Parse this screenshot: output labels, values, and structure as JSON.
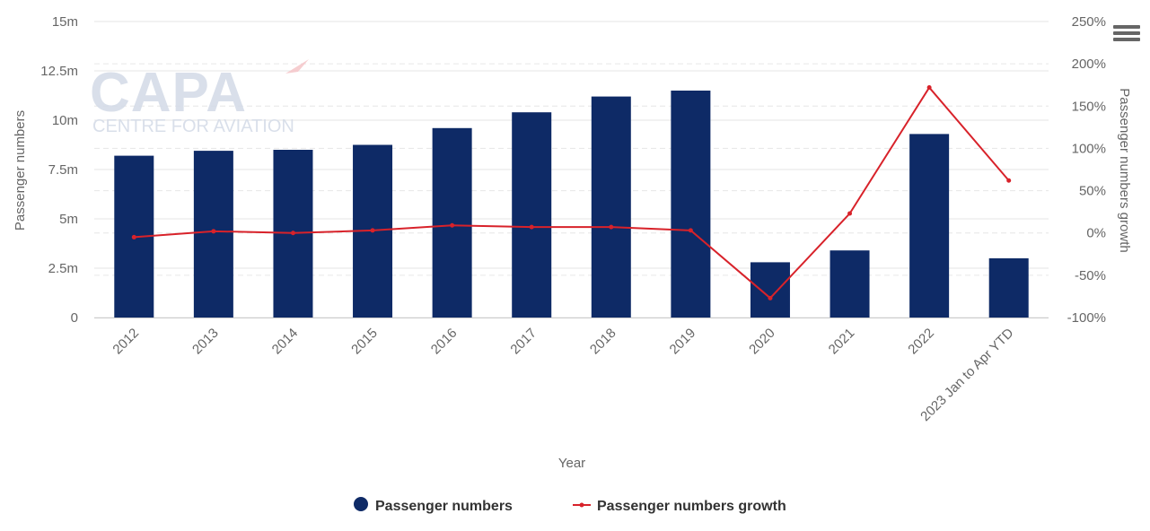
{
  "chart_data": {
    "type": "bar",
    "categories": [
      "2012",
      "2013",
      "2014",
      "2015",
      "2016",
      "2017",
      "2018",
      "2019",
      "2020",
      "2021",
      "2022",
      "2023 Jan to Apr YTD"
    ],
    "series": [
      {
        "name": "Passenger numbers",
        "type": "bar",
        "axis": "left",
        "color": "#0e2a66",
        "values": [
          8.2,
          8.45,
          8.5,
          8.75,
          9.6,
          10.4,
          11.2,
          11.5,
          2.8,
          3.4,
          9.3,
          3.0
        ]
      },
      {
        "name": "Passenger numbers growth",
        "type": "line",
        "axis": "right",
        "color": "#d8222a",
        "values": [
          -5,
          2,
          0,
          3,
          9,
          7,
          7,
          3,
          -77,
          23,
          172,
          62
        ]
      }
    ],
    "xlabel": "Year",
    "ylabel": "Passenger numbers",
    "y2label": "Passenger numbers growth",
    "ylim": [
      0,
      15
    ],
    "y2lim": [
      -100,
      250
    ],
    "yticks": [
      "0",
      "2.5m",
      "5m",
      "7.5m",
      "10m",
      "12.5m",
      "15m"
    ],
    "y2ticks": [
      "-100%",
      "-50%",
      "0%",
      "50%",
      "100%",
      "150%",
      "200%",
      "250%"
    ],
    "grid": true,
    "legend_position": "bottom-center"
  },
  "watermark": {
    "logo": "CAPA",
    "tagline": "CENTRE FOR AVIATION"
  },
  "icons": {
    "menu": "hamburger-menu-icon"
  }
}
